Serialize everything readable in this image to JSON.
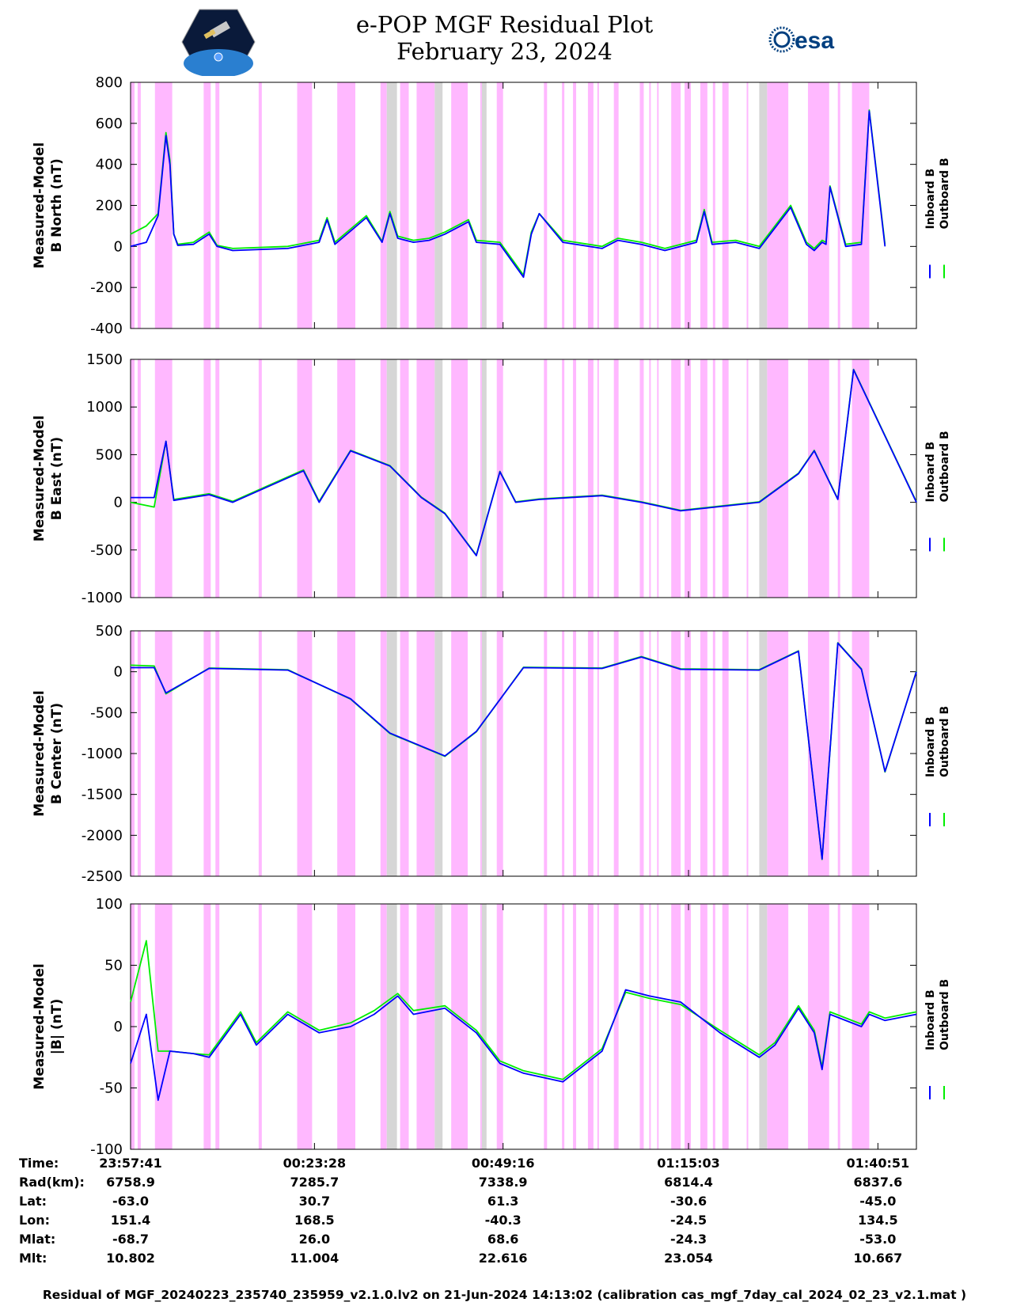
{
  "title": "e-POP MGF Residual Plot",
  "date": "February 23, 2024",
  "logos": {
    "left": "CASSIOPE",
    "right": "esa"
  },
  "colors": {
    "inboard": "#0000ff",
    "outboard": "#00ee00",
    "pink": "#ffb8ff",
    "gray": "#d6d6d6"
  },
  "legend": {
    "inboard": "Inboard B",
    "outboard": "Outboard B"
  },
  "chart_data": [
    {
      "type": "line",
      "ylabel_line1": "Measured-Model",
      "ylabel_line2": "B North (nT)",
      "ylim": [
        -400,
        800
      ],
      "yticks": [
        -400,
        -200,
        0,
        200,
        400,
        600,
        800
      ],
      "series": [
        {
          "name": "Inboard B",
          "x": [
            0,
            0.02,
            0.035,
            0.045,
            0.05,
            0.055,
            0.06,
            0.08,
            0.1,
            0.11,
            0.13,
            0.2,
            0.24,
            0.25,
            0.26,
            0.3,
            0.32,
            0.33,
            0.34,
            0.36,
            0.38,
            0.4,
            0.43,
            0.44,
            0.47,
            0.5,
            0.51,
            0.52,
            0.55,
            0.6,
            0.62,
            0.65,
            0.68,
            0.72,
            0.73,
            0.74,
            0.77,
            0.8,
            0.84,
            0.86,
            0.87,
            0.88,
            0.885,
            0.89,
            0.91,
            0.93,
            0.94,
            0.96
          ],
          "y": [
            0,
            20,
            150,
            540,
            400,
            60,
            5,
            10,
            60,
            0,
            -20,
            -10,
            20,
            130,
            10,
            140,
            20,
            160,
            40,
            20,
            30,
            60,
            120,
            20,
            10,
            -150,
            60,
            160,
            20,
            -10,
            30,
            10,
            -20,
            20,
            170,
            10,
            20,
            -10,
            190,
            10,
            -20,
            20,
            10,
            290,
            0,
            10,
            660,
            0
          ]
        },
        {
          "name": "Outboard B",
          "x": [
            0,
            0.02,
            0.035,
            0.045,
            0.05,
            0.055,
            0.06,
            0.08,
            0.1,
            0.11,
            0.13,
            0.2,
            0.24,
            0.25,
            0.26,
            0.3,
            0.32,
            0.33,
            0.34,
            0.36,
            0.38,
            0.4,
            0.43,
            0.44,
            0.47,
            0.5,
            0.51,
            0.52,
            0.55,
            0.6,
            0.62,
            0.65,
            0.68,
            0.72,
            0.73,
            0.74,
            0.77,
            0.8,
            0.84,
            0.86,
            0.87,
            0.88,
            0.885,
            0.89,
            0.91,
            0.93,
            0.94,
            0.96
          ],
          "y": [
            60,
            100,
            160,
            555,
            420,
            60,
            10,
            20,
            70,
            5,
            -10,
            0,
            30,
            140,
            20,
            150,
            25,
            170,
            50,
            30,
            40,
            70,
            130,
            30,
            20,
            -140,
            70,
            160,
            30,
            0,
            40,
            20,
            -10,
            30,
            180,
            20,
            30,
            0,
            200,
            20,
            -10,
            30,
            20,
            295,
            10,
            20,
            665,
            10
          ]
        }
      ]
    },
    {
      "type": "line",
      "ylabel_line1": "Measured-Model",
      "ylabel_line2": "B East (nT)",
      "ylim": [
        -1000,
        1500
      ],
      "yticks": [
        -1000,
        -500,
        0,
        500,
        1000,
        1500
      ],
      "series": [
        {
          "name": "Inboard B",
          "x": [
            0,
            0.03,
            0.045,
            0.055,
            0.1,
            0.13,
            0.22,
            0.24,
            0.28,
            0.33,
            0.37,
            0.4,
            0.44,
            0.47,
            0.49,
            0.52,
            0.6,
            0.65,
            0.7,
            0.8,
            0.85,
            0.87,
            0.9,
            0.92,
            1.0
          ],
          "y": [
            50,
            50,
            640,
            20,
            80,
            0,
            330,
            0,
            540,
            380,
            50,
            -120,
            -560,
            320,
            0,
            30,
            70,
            0,
            -90,
            0,
            300,
            540,
            30,
            1390,
            0
          ]
        },
        {
          "name": "Outboard B",
          "x": [
            0,
            0.03,
            0.045,
            0.055,
            0.1,
            0.13,
            0.22,
            0.24,
            0.28,
            0.33,
            0.37,
            0.4,
            0.44,
            0.47,
            0.49,
            0.52,
            0.6,
            0.65,
            0.7,
            0.8,
            0.85,
            0.87,
            0.9,
            0.92,
            1.0
          ],
          "y": [
            0,
            -50,
            640,
            30,
            90,
            10,
            340,
            10,
            545,
            385,
            55,
            -115,
            -555,
            325,
            5,
            35,
            75,
            5,
            -85,
            5,
            305,
            545,
            35,
            1395,
            5
          ]
        }
      ]
    },
    {
      "type": "line",
      "ylabel_line1": "Measured-Model",
      "ylabel_line2": "B Center (nT)",
      "ylim": [
        -2500,
        500
      ],
      "yticks": [
        -2500,
        -2000,
        -1500,
        -1000,
        -500,
        0,
        500
      ],
      "series": [
        {
          "name": "Inboard B",
          "x": [
            0,
            0.03,
            0.045,
            0.1,
            0.2,
            0.28,
            0.33,
            0.4,
            0.44,
            0.5,
            0.6,
            0.65,
            0.7,
            0.8,
            0.85,
            0.88,
            0.9,
            0.93,
            0.96,
            1.0
          ],
          "y": [
            50,
            50,
            -260,
            40,
            20,
            -330,
            -750,
            -1030,
            -730,
            50,
            40,
            180,
            30,
            20,
            250,
            -2290,
            350,
            30,
            -1220,
            0
          ]
        },
        {
          "name": "Outboard B",
          "x": [
            0,
            0.03,
            0.045,
            0.1,
            0.2,
            0.28,
            0.33,
            0.4,
            0.44,
            0.5,
            0.6,
            0.65,
            0.7,
            0.8,
            0.85,
            0.88,
            0.9,
            0.93,
            0.96,
            1.0
          ],
          "y": [
            80,
            70,
            -270,
            45,
            25,
            -335,
            -755,
            -1035,
            -735,
            55,
            45,
            185,
            35,
            25,
            255,
            -2295,
            355,
            35,
            -1225,
            5
          ]
        }
      ]
    },
    {
      "type": "line",
      "ylabel_line1": "Measured-Model",
      "ylabel_line2": "|B| (nT)",
      "ylim": [
        -100,
        100
      ],
      "yticks": [
        -100,
        -50,
        0,
        50,
        100
      ],
      "series": [
        {
          "name": "Inboard B",
          "x": [
            0,
            0.02,
            0.035,
            0.05,
            0.08,
            0.1,
            0.14,
            0.16,
            0.2,
            0.24,
            0.28,
            0.31,
            0.34,
            0.36,
            0.4,
            0.44,
            0.47,
            0.5,
            0.55,
            0.6,
            0.63,
            0.66,
            0.7,
            0.75,
            0.8,
            0.82,
            0.85,
            0.87,
            0.88,
            0.89,
            0.93,
            0.94,
            0.96,
            1.0
          ],
          "y": [
            -30,
            10,
            -60,
            -20,
            -22,
            -25,
            10,
            -15,
            10,
            -5,
            0,
            10,
            25,
            10,
            15,
            -5,
            -30,
            -38,
            -45,
            -20,
            30,
            25,
            20,
            -5,
            -25,
            -15,
            15,
            -5,
            -35,
            10,
            0,
            10,
            5,
            10
          ]
        },
        {
          "name": "Outboard B",
          "x": [
            0,
            0.02,
            0.035,
            0.05,
            0.08,
            0.1,
            0.14,
            0.16,
            0.2,
            0.24,
            0.28,
            0.31,
            0.34,
            0.36,
            0.4,
            0.44,
            0.47,
            0.5,
            0.55,
            0.6,
            0.63,
            0.66,
            0.7,
            0.75,
            0.8,
            0.82,
            0.85,
            0.87,
            0.88,
            0.89,
            0.93,
            0.94,
            0.96,
            1.0
          ],
          "y": [
            20,
            70,
            -20,
            -20,
            -22,
            -23,
            12,
            -13,
            12,
            -3,
            3,
            13,
            27,
            13,
            17,
            -3,
            -28,
            -36,
            -43,
            -18,
            28,
            23,
            18,
            -3,
            -23,
            -13,
            17,
            -3,
            -33,
            12,
            2,
            12,
            7,
            12
          ]
        }
      ]
    }
  ],
  "xticks": [
    "23:57:41",
    "00:23:28",
    "00:49:16",
    "01:15:03",
    "01:40:51"
  ],
  "footer": {
    "rows": [
      {
        "label": "Time:",
        "values": [
          "23:57:41",
          "00:23:28",
          "00:49:16",
          "01:15:03",
          "01:40:51"
        ]
      },
      {
        "label": "Rad(km):",
        "values": [
          "6758.9",
          "7285.7",
          "7338.9",
          "6814.4",
          "6837.6"
        ]
      },
      {
        "label": "Lat:",
        "values": [
          "-63.0",
          "30.7",
          "61.3",
          "-30.6",
          "-45.0"
        ]
      },
      {
        "label": "Lon:",
        "values": [
          "151.4",
          "168.5",
          "-40.3",
          "-24.5",
          "134.5"
        ]
      },
      {
        "label": "Mlat:",
        "values": [
          "-68.7",
          "26.0",
          "68.6",
          "-24.3",
          "-53.0"
        ]
      },
      {
        "label": "Mlt:",
        "values": [
          "10.802",
          "11.004",
          "22.616",
          "23.054",
          "10.667"
        ]
      }
    ]
  },
  "footnote": "Residual of MGF_20240223_235740_235959_v2.1.0.lv2 on 21-Jun-2024 14:13:02 (calibration cas_mgf_7day_cal_2024_02_23_v2.1.mat )"
}
